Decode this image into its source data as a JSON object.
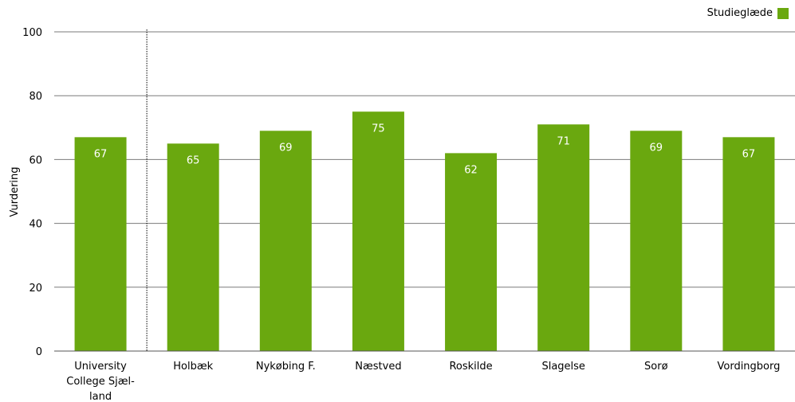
{
  "chart_data": {
    "type": "bar",
    "categories": [
      "University College Sjæl- land",
      "Holbæk",
      "Nykøbing F.",
      "Næstved",
      "Roskilde",
      "Slagelse",
      "Sorø",
      "Vordingborg"
    ],
    "category_lines": [
      [
        "University",
        "College Sjæl-",
        "land"
      ],
      [
        "Holbæk"
      ],
      [
        "Nykøbing F."
      ],
      [
        "Næstved"
      ],
      [
        "Roskilde"
      ],
      [
        "Slagelse"
      ],
      [
        "Sorø"
      ],
      [
        "Vordingborg"
      ]
    ],
    "series": [
      {
        "name": "Studieglæde",
        "values": [
          67,
          65,
          69,
          75,
          62,
          71,
          69,
          67
        ],
        "value_labels": [
          "67",
          "65",
          "69",
          "75",
          "62",
          "71",
          "69",
          "67"
        ]
      }
    ],
    "ylabel": "Vurdering",
    "ylim": [
      0,
      100
    ],
    "yticks": [
      0,
      20,
      40,
      60,
      80,
      100
    ],
    "grid": true,
    "legend_position": "top-right",
    "separator_after_category": 0,
    "bar_color": "#6aa80f"
  }
}
